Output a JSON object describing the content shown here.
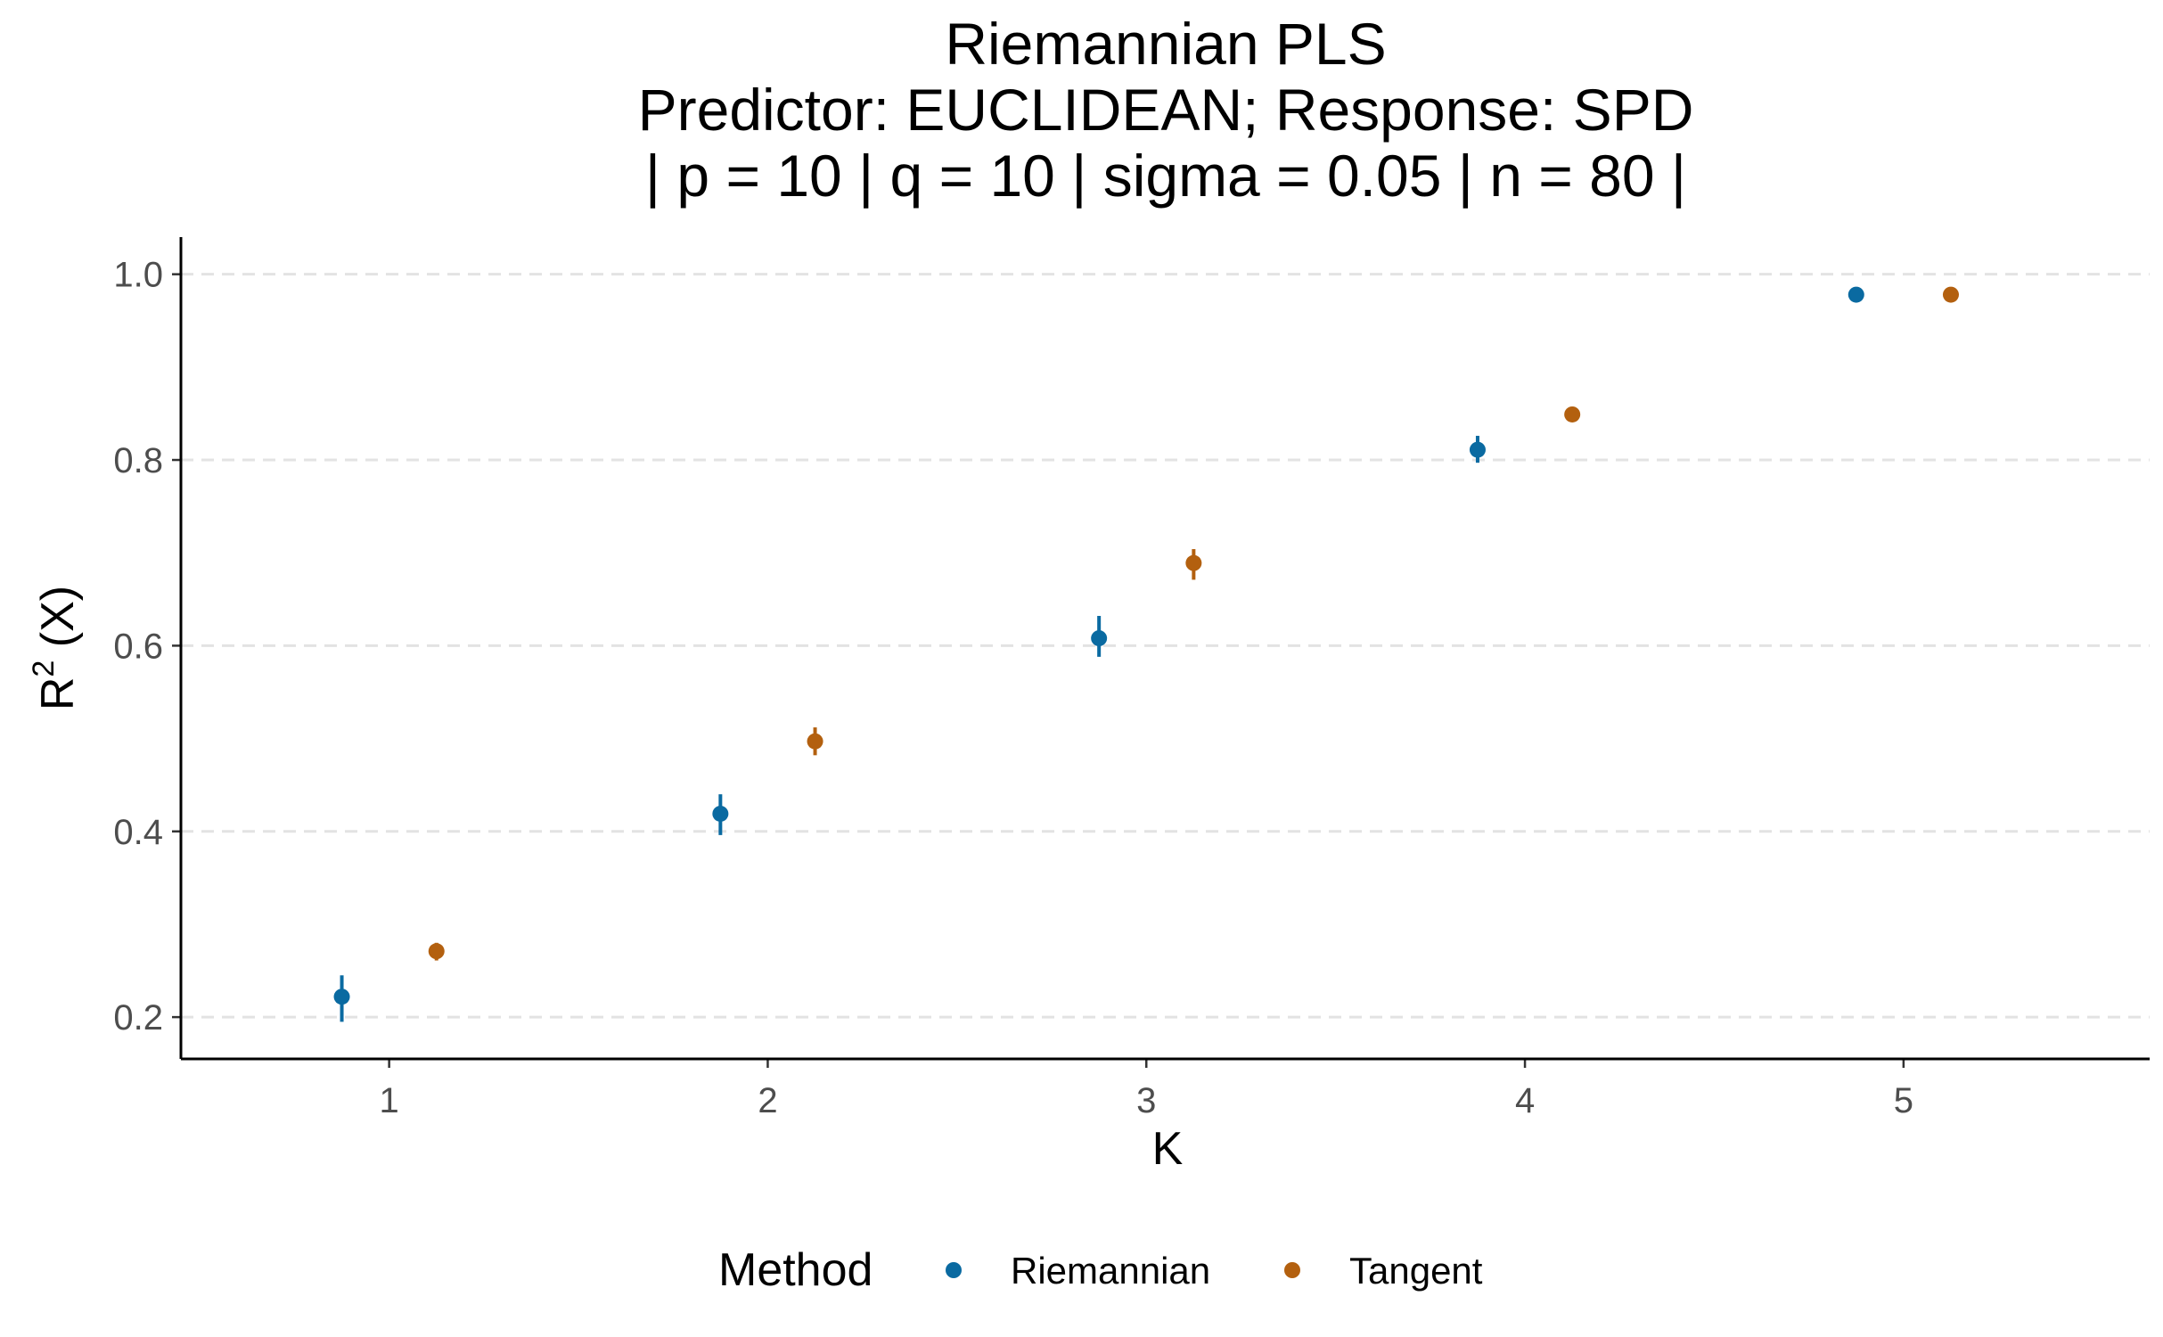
{
  "chart_data": {
    "type": "scatter",
    "title_lines": [
      "Riemannian PLS",
      "Predictor: EUCLIDEAN; Response: SPD",
      "| p = 10 | q = 10 | sigma = 0.05 | n = 80 |"
    ],
    "xlabel": "K",
    "ylabel": {
      "base": "R",
      "sup": "2",
      "rest": " (X)"
    },
    "x_ticks": [
      "1",
      "2",
      "3",
      "4",
      "5"
    ],
    "y_ticks": [
      "0.2",
      "0.4",
      "0.6",
      "0.8",
      "1.0"
    ],
    "xlim": [
      0.45,
      5.65
    ],
    "ylim": [
      0.155,
      1.04
    ],
    "grid": "horizontal-dashed-major",
    "legend_position": "bottom",
    "legend_title": "Method",
    "series": [
      {
        "name": "Riemannian",
        "color": "#0a6aa1",
        "x": [
          1,
          2,
          3,
          4,
          5
        ],
        "y": [
          0.222,
          0.419,
          0.608,
          0.811,
          0.978
        ],
        "y_low": [
          0.195,
          0.396,
          0.588,
          0.797,
          0.975
        ],
        "y_high": [
          0.245,
          0.44,
          0.632,
          0.826,
          0.981
        ]
      },
      {
        "name": "Tangent",
        "color": "#b3600f",
        "x": [
          1,
          2,
          3,
          4,
          5
        ],
        "y": [
          0.271,
          0.497,
          0.689,
          0.849,
          0.978
        ],
        "y_low": [
          0.261,
          0.482,
          0.671,
          0.842,
          0.975
        ],
        "y_high": [
          0.28,
          0.512,
          0.704,
          0.856,
          0.981
        ]
      }
    ],
    "dodge": 0.25
  }
}
